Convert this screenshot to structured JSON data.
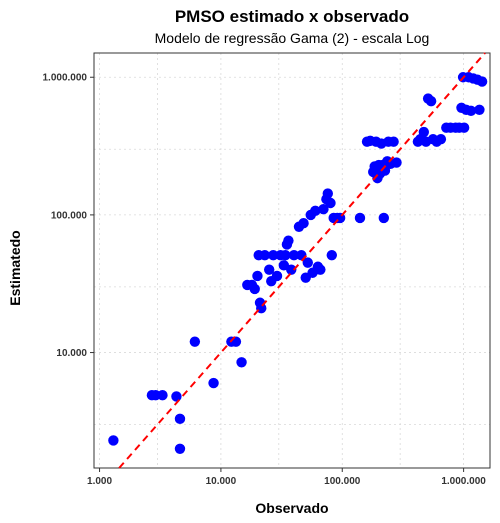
{
  "chart_data": {
    "type": "scatter",
    "title": "PMSO estimado x observado",
    "subtitle": "Modelo de regressão Gama (2) - escala Log",
    "xlabel": "Observado",
    "ylabel": "Estimatedo",
    "x_scale": "log10",
    "y_scale": "log10",
    "xlim": [
      900,
      1650000
    ],
    "ylim": [
      1450,
      1500000
    ],
    "x_ticks": [
      {
        "value": 1000,
        "label": "1.000"
      },
      {
        "value": 10000,
        "label": "10.000"
      },
      {
        "value": 100000,
        "label": "100.000"
      },
      {
        "value": 1000000,
        "label": "1.000.000"
      }
    ],
    "y_ticks": [
      {
        "value": 10000,
        "label": "10.000"
      },
      {
        "value": 100000,
        "label": "100.000"
      },
      {
        "value": 1000000,
        "label": "1.000.000"
      }
    ],
    "grid": true,
    "point_color": "#0000ff",
    "line_color": "#ff0000",
    "reference_line": {
      "type": "identity",
      "style": "dashed"
    },
    "points": [
      {
        "x": 1300,
        "y": 2300
      },
      {
        "x": 2700,
        "y": 4900
      },
      {
        "x": 2900,
        "y": 4900
      },
      {
        "x": 3300,
        "y": 4900
      },
      {
        "x": 4300,
        "y": 4800
      },
      {
        "x": 4600,
        "y": 3300
      },
      {
        "x": 4600,
        "y": 2000
      },
      {
        "x": 6100,
        "y": 12000
      },
      {
        "x": 8700,
        "y": 6000
      },
      {
        "x": 12200,
        "y": 12000
      },
      {
        "x": 13300,
        "y": 12000
      },
      {
        "x": 14800,
        "y": 8500
      },
      {
        "x": 16500,
        "y": 31000
      },
      {
        "x": 18000,
        "y": 31000
      },
      {
        "x": 19000,
        "y": 29000
      },
      {
        "x": 20000,
        "y": 36000
      },
      {
        "x": 20500,
        "y": 51000
      },
      {
        "x": 21000,
        "y": 23000
      },
      {
        "x": 21500,
        "y": 21000
      },
      {
        "x": 23000,
        "y": 51000
      },
      {
        "x": 25000,
        "y": 40000
      },
      {
        "x": 26000,
        "y": 33000
      },
      {
        "x": 27000,
        "y": 51000
      },
      {
        "x": 29000,
        "y": 36000
      },
      {
        "x": 31000,
        "y": 51000
      },
      {
        "x": 33000,
        "y": 43000
      },
      {
        "x": 34000,
        "y": 51000
      },
      {
        "x": 35000,
        "y": 61000
      },
      {
        "x": 36000,
        "y": 65000
      },
      {
        "x": 38000,
        "y": 40000
      },
      {
        "x": 40000,
        "y": 51000
      },
      {
        "x": 44000,
        "y": 82000
      },
      {
        "x": 46000,
        "y": 51000
      },
      {
        "x": 48000,
        "y": 87000
      },
      {
        "x": 50000,
        "y": 35000
      },
      {
        "x": 52000,
        "y": 45000
      },
      {
        "x": 55000,
        "y": 100000
      },
      {
        "x": 57000,
        "y": 38000
      },
      {
        "x": 60000,
        "y": 107000
      },
      {
        "x": 63000,
        "y": 42000
      },
      {
        "x": 66000,
        "y": 40000
      },
      {
        "x": 70000,
        "y": 110000
      },
      {
        "x": 74000,
        "y": 130000
      },
      {
        "x": 76000,
        "y": 143000
      },
      {
        "x": 80000,
        "y": 122000
      },
      {
        "x": 82000,
        "y": 51000
      },
      {
        "x": 85000,
        "y": 95000
      },
      {
        "x": 91000,
        "y": 95000
      },
      {
        "x": 96000,
        "y": 95000
      },
      {
        "x": 140000,
        "y": 95000
      },
      {
        "x": 160000,
        "y": 340000
      },
      {
        "x": 170000,
        "y": 345000
      },
      {
        "x": 180000,
        "y": 205000
      },
      {
        "x": 185000,
        "y": 225000
      },
      {
        "x": 190000,
        "y": 340000
      },
      {
        "x": 195000,
        "y": 185000
      },
      {
        "x": 200000,
        "y": 230000
      },
      {
        "x": 205000,
        "y": 200000
      },
      {
        "x": 210000,
        "y": 330000
      },
      {
        "x": 215000,
        "y": 230000
      },
      {
        "x": 220000,
        "y": 95000
      },
      {
        "x": 225000,
        "y": 210000
      },
      {
        "x": 235000,
        "y": 245000
      },
      {
        "x": 240000,
        "y": 340000
      },
      {
        "x": 250000,
        "y": 235000
      },
      {
        "x": 265000,
        "y": 340000
      },
      {
        "x": 280000,
        "y": 240000
      },
      {
        "x": 420000,
        "y": 340000
      },
      {
        "x": 440000,
        "y": 355000
      },
      {
        "x": 470000,
        "y": 400000
      },
      {
        "x": 490000,
        "y": 340000
      },
      {
        "x": 510000,
        "y": 700000
      },
      {
        "x": 540000,
        "y": 670000
      },
      {
        "x": 560000,
        "y": 355000
      },
      {
        "x": 600000,
        "y": 340000
      },
      {
        "x": 650000,
        "y": 355000
      },
      {
        "x": 720000,
        "y": 430000
      },
      {
        "x": 780000,
        "y": 430000
      },
      {
        "x": 860000,
        "y": 430000
      },
      {
        "x": 920000,
        "y": 430000
      },
      {
        "x": 960000,
        "y": 600000
      },
      {
        "x": 990000,
        "y": 1000000
      },
      {
        "x": 1010000,
        "y": 430000
      },
      {
        "x": 1050000,
        "y": 580000
      },
      {
        "x": 1100000,
        "y": 1000000
      },
      {
        "x": 1150000,
        "y": 570000
      },
      {
        "x": 1200000,
        "y": 980000
      },
      {
        "x": 1300000,
        "y": 960000
      },
      {
        "x": 1350000,
        "y": 580000
      },
      {
        "x": 1420000,
        "y": 930000
      }
    ]
  }
}
